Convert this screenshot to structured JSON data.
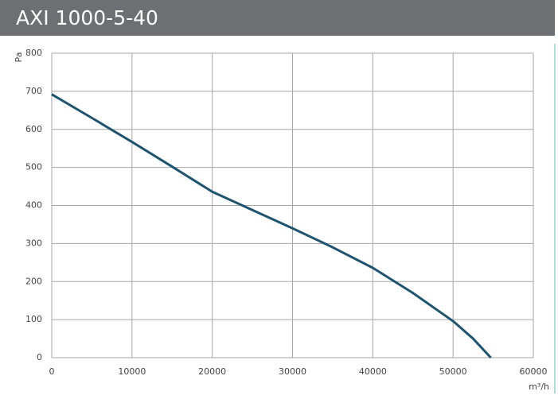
{
  "chart_data": {
    "type": "line",
    "title": "AXI 1000-5-40",
    "x_label": "m³/h",
    "y_label": "Pa",
    "x": [
      0,
      5000,
      10000,
      15000,
      20000,
      25000,
      30000,
      35000,
      40000,
      45000,
      50000,
      52500,
      54700
    ],
    "values": [
      692,
      630,
      567,
      502,
      436,
      388,
      340,
      290,
      236,
      170,
      96,
      50,
      0
    ],
    "color": "#1f5470",
    "xlim": [
      0,
      60000
    ],
    "ylim": [
      0,
      800
    ],
    "xticks": [
      0,
      10000,
      20000,
      30000,
      40000,
      50000,
      60000
    ],
    "yticks": [
      0,
      100,
      200,
      300,
      400,
      500,
      600,
      700,
      800
    ],
    "grid": true
  }
}
